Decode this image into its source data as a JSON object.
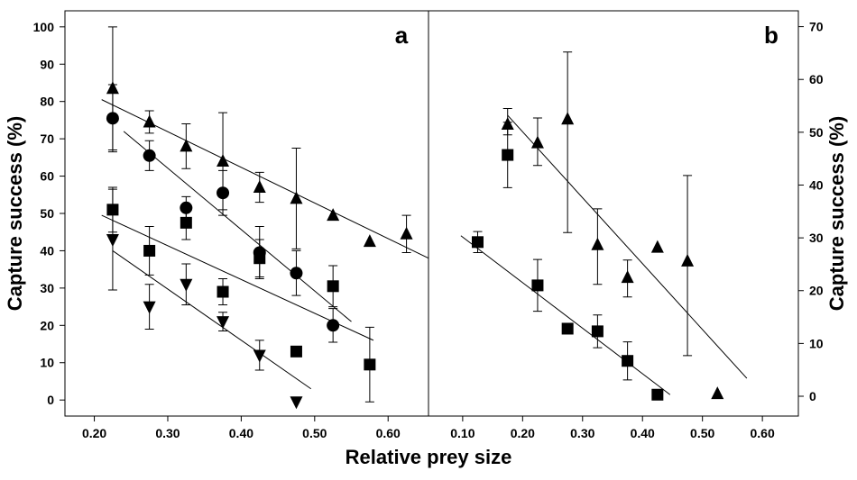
{
  "chart_data": [
    {
      "type": "scatter",
      "panel": "a",
      "xlabel": "Relative prey size",
      "ylabel": "Capture success (%)",
      "y_axis_side": "left",
      "xlim": [
        0.16,
        0.655
      ],
      "ylim": [
        -4.3,
        104.3
      ],
      "xticks": [
        {
          "value": 0.2,
          "label": "0.20"
        },
        {
          "value": 0.3,
          "label": "0.30"
        },
        {
          "value": 0.4,
          "label": "0.40"
        },
        {
          "value": 0.5,
          "label": "0.50"
        },
        {
          "value": 0.6,
          "label": "0.60"
        }
      ],
      "yticks": [
        0,
        10,
        20,
        30,
        40,
        50,
        60,
        70,
        80,
        90,
        100
      ],
      "series": [
        {
          "marker": "triangle-up",
          "color": "#000000",
          "x": [
            0.225,
            0.275,
            0.325,
            0.375,
            0.425,
            0.475,
            0.525,
            0.575,
            0.625
          ],
          "values": [
            83.5,
            74.5,
            68,
            64,
            57,
            54,
            49.5,
            42.5,
            44.5
          ],
          "err_low": [
            16.5,
            3,
            6,
            13,
            4,
            13.5,
            null,
            null,
            5
          ],
          "err_high": [
            16.5,
            3,
            6,
            13,
            4,
            13.5,
            null,
            null,
            5
          ],
          "fit": {
            "x": [
              0.21,
              0.655
            ],
            "y": [
              80.5,
              38
            ]
          }
        },
        {
          "marker": "circle",
          "color": "#000000",
          "x": [
            0.225,
            0.275,
            0.325,
            0.375,
            0.425,
            0.475,
            0.525
          ],
          "values": [
            75.5,
            65.5,
            51.5,
            55.5,
            39.5,
            34,
            20
          ],
          "err_low": [
            9,
            4,
            3,
            6,
            7,
            6,
            4.5
          ],
          "err_high": [
            9,
            4,
            3,
            6,
            7,
            6,
            4.5
          ],
          "fit": {
            "x": [
              0.24,
              0.55
            ],
            "y": [
              72,
              21
            ]
          }
        },
        {
          "marker": "square",
          "color": "#000000",
          "x": [
            0.225,
            0.275,
            0.325,
            0.375,
            0.425,
            0.475,
            0.525,
            0.575
          ],
          "values": [
            51,
            40,
            47.5,
            29,
            38,
            13,
            30.5,
            9.5
          ],
          "err_low": [
            6,
            6.5,
            4.5,
            3.5,
            5,
            null,
            5.5,
            10
          ],
          "err_high": [
            6,
            6.5,
            4.5,
            3.5,
            5,
            null,
            5.5,
            10
          ],
          "fit": {
            "x": [
              0.21,
              0.58
            ],
            "y": [
              49.5,
              16
            ]
          }
        },
        {
          "marker": "triangle-down",
          "color": "#000000",
          "x": [
            0.225,
            0.275,
            0.325,
            0.375,
            0.425,
            0.475
          ],
          "values": [
            43,
            25,
            31,
            21,
            12,
            -0.5
          ],
          "err_low": [
            13.5,
            6,
            5.5,
            2.5,
            4,
            null
          ],
          "err_high": [
            13.5,
            6,
            5.5,
            2.5,
            4,
            null
          ],
          "fit": {
            "x": [
              0.225,
              0.495
            ],
            "y": [
              40,
              3
            ]
          }
        }
      ]
    },
    {
      "type": "scatter",
      "panel": "b",
      "ylabel": "Capture success (%)",
      "y_axis_side": "right",
      "xlim": [
        0.043,
        0.66
      ],
      "ylim": [
        -3.75,
        73
      ],
      "xticks": [
        {
          "value": 0.1,
          "label": "0.10"
        },
        {
          "value": 0.2,
          "label": "0.20"
        },
        {
          "value": 0.3,
          "label": "0.30"
        },
        {
          "value": 0.4,
          "label": "0.40"
        },
        {
          "value": 0.5,
          "label": "0.50"
        },
        {
          "value": 0.6,
          "label": "0.60"
        }
      ],
      "yticks": [
        0,
        10,
        20,
        30,
        40,
        50,
        60,
        70
      ],
      "series": [
        {
          "marker": "triangle-up",
          "color": "#000000",
          "x": [
            0.175,
            0.225,
            0.275,
            0.325,
            0.375,
            0.425,
            0.475,
            0.525
          ],
          "values": [
            51.5,
            48,
            52.5,
            28.7,
            22.5,
            28.2,
            25.6,
            0.5
          ],
          "err_low": [
            2,
            4.3,
            21.5,
            7.5,
            3.7,
            null,
            17.9,
            null
          ],
          "err_high": [
            3,
            4.7,
            12.7,
            6.8,
            3.3,
            null,
            16.2,
            null
          ],
          "fit": {
            "x": [
              0.175,
              0.574
            ],
            "y": [
              53.2,
              3.4
            ]
          }
        },
        {
          "marker": "square",
          "color": "#000000",
          "x": [
            0.125,
            0.175,
            0.225,
            0.275,
            0.325,
            0.375,
            0.425
          ],
          "values": [
            29.2,
            45.7,
            21,
            12.8,
            12.3,
            6.7,
            0.3
          ],
          "err_low": [
            2,
            6.2,
            4.9,
            null,
            3.1,
            3.6,
            null
          ],
          "err_high": [
            2,
            6.2,
            4.9,
            null,
            3.1,
            3.6,
            null
          ],
          "fit": {
            "x": [
              0.097,
              0.446
            ],
            "y": [
              30.4,
              0.3
            ]
          }
        }
      ]
    }
  ]
}
